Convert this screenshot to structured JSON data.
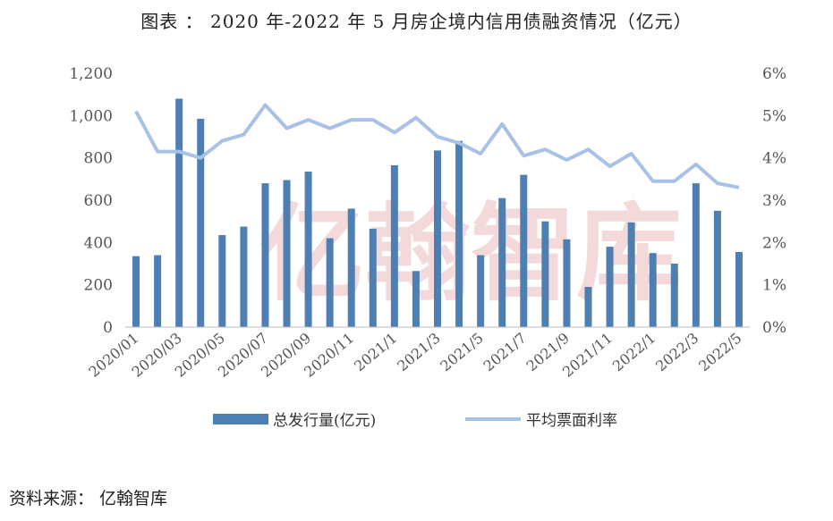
{
  "title": "图表 ： 2020 年-2022 年 5 月房企境内信用债融资情况（亿元）",
  "source": "资料来源： 亿翰智库",
  "watermark": "亿翰智库",
  "colors": {
    "bar": "#4e7fb3",
    "line": "#a8c1e6",
    "axis": "#333333",
    "tick": "#555555",
    "watermark": "#f3d9d9"
  },
  "chart_data": {
    "type": "bar",
    "categories": [
      "2020/01",
      "2020/02",
      "2020/03",
      "2020/04",
      "2020/05",
      "2020/06",
      "2020/07",
      "2020/08",
      "2020/09",
      "2020/10",
      "2020/11",
      "2020/12",
      "2021/1",
      "2021/2",
      "2021/3",
      "2021/4",
      "2021/5",
      "2021/6",
      "2021/7",
      "2021/8",
      "2021/9",
      "2021/10",
      "2021/11",
      "2021/12",
      "2022/1",
      "2022/2",
      "2022/3",
      "2022/4",
      "2022/5"
    ],
    "xtick_labels": [
      "2020/01",
      "2020/03",
      "2020/05",
      "2020/07",
      "2020/09",
      "2020/11",
      "2021/1",
      "2021/3",
      "2021/5",
      "2021/7",
      "2021/9",
      "2021/11",
      "2022/1",
      "2022/3",
      "2022/5"
    ],
    "series": [
      {
        "name": "总发行量(亿元)",
        "type": "bar",
        "axis": "left",
        "values": [
          335,
          340,
          1080,
          985,
          435,
          475,
          680,
          695,
          735,
          420,
          560,
          465,
          765,
          265,
          835,
          880,
          340,
          610,
          720,
          500,
          415,
          190,
          380,
          495,
          350,
          300,
          680,
          550,
          355
        ]
      },
      {
        "name": "平均票面利率",
        "type": "line",
        "axis": "right",
        "values": [
          5.1,
          4.15,
          4.15,
          4.0,
          4.4,
          4.55,
          5.25,
          4.7,
          4.9,
          4.7,
          4.9,
          4.9,
          4.6,
          4.95,
          4.5,
          4.35,
          4.1,
          4.8,
          4.05,
          4.2,
          3.95,
          4.2,
          3.8,
          4.1,
          3.45,
          3.45,
          3.85,
          3.4,
          3.3
        ]
      }
    ],
    "left_axis": {
      "ylim": [
        0,
        1200
      ],
      "ticks": [
        0,
        200,
        400,
        600,
        800,
        1000,
        1200
      ],
      "tick_labels": [
        "0",
        "200",
        "400",
        "600",
        "800",
        "1,000",
        "1,200"
      ]
    },
    "right_axis": {
      "ylim": [
        0,
        6
      ],
      "ticks": [
        0,
        1,
        2,
        3,
        4,
        5,
        6
      ],
      "tick_labels": [
        "0%",
        "1%",
        "2%",
        "3%",
        "4%",
        "5%",
        "6%"
      ]
    },
    "grid": false,
    "legend_position": "bottom"
  }
}
